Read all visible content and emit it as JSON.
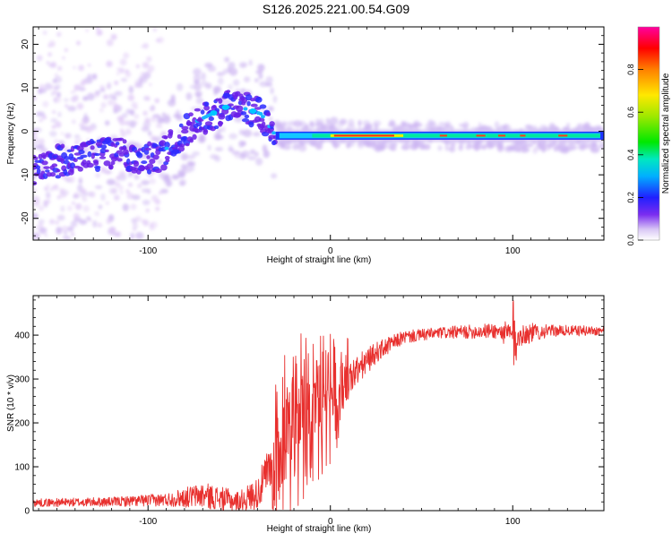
{
  "title": "S126.2025.221.00.54.G09",
  "spectrogram": {
    "chart_data": {
      "type": "heatmap",
      "xlabel": "Height of straight line (km)",
      "ylabel": "Frequency (Hz)",
      "xlim": [
        -163,
        150
      ],
      "ylim": [
        -25,
        24
      ],
      "xticks": [
        -100,
        0,
        100
      ],
      "yticks": [
        -20,
        -10,
        0,
        10,
        20
      ],
      "xtick_labels": [
        "-100",
        "0",
        "100"
      ],
      "ytick_labels": [
        "-20",
        "-10",
        "0",
        "10",
        "20"
      ],
      "ridge": [
        {
          "x": -163,
          "y": -9
        },
        {
          "x": -150,
          "y": -7
        },
        {
          "x": -135,
          "y": -6
        },
        {
          "x": -120,
          "y": -5
        },
        {
          "x": -105,
          "y": -6
        },
        {
          "x": -95,
          "y": -6
        },
        {
          "x": -85,
          "y": -2
        },
        {
          "x": -75,
          "y": 2
        },
        {
          "x": -65,
          "y": 4
        },
        {
          "x": -55,
          "y": 6
        },
        {
          "x": -45,
          "y": 5
        },
        {
          "x": -38,
          "y": 4
        },
        {
          "x": -30,
          "y": -1
        },
        {
          "x": -20,
          "y": -1
        },
        {
          "x": -10,
          "y": -1
        },
        {
          "x": 0,
          "y": -0.5
        },
        {
          "x": 30,
          "y": -1
        },
        {
          "x": 60,
          "y": -1
        },
        {
          "x": 90,
          "y": -1.5
        },
        {
          "x": 120,
          "y": -1.5
        },
        {
          "x": 150,
          "y": -1.5
        }
      ]
    },
    "colorbar": {
      "label": "Normalized spectral amplitude",
      "range": [
        0,
        1
      ],
      "ticks": [
        0.0,
        0.2,
        0.4,
        0.6,
        0.8
      ],
      "tick_labels": [
        "0.0",
        "0.2",
        "0.4",
        "0.6",
        "0.8"
      ]
    }
  },
  "snr": {
    "chart_data": {
      "type": "line",
      "xlabel": "Height of straight line (km)",
      "ylabel": "SNR (10 * v/v)",
      "xlim": [
        -163,
        150
      ],
      "ylim": [
        0,
        490
      ],
      "xticks": [
        -100,
        0,
        100
      ],
      "yticks": [
        0,
        100,
        200,
        300,
        400
      ],
      "xtick_labels": [
        "-100",
        "0",
        "100"
      ],
      "ytick_labels": [
        "0",
        "100",
        "200",
        "300",
        "400"
      ],
      "series": [
        {
          "color": "#e8302e",
          "envelope": [
            {
              "x": -163,
              "y": 18,
              "noise": 15
            },
            {
              "x": -120,
              "y": 20,
              "noise": 18
            },
            {
              "x": -90,
              "y": 25,
              "noise": 25
            },
            {
              "x": -70,
              "y": 35,
              "noise": 50
            },
            {
              "x": -50,
              "y": 20,
              "noise": 40
            },
            {
              "x": -40,
              "y": 40,
              "noise": 60
            },
            {
              "x": -30,
              "y": 120,
              "noise": 120
            },
            {
              "x": -22,
              "y": 180,
              "noise": 180
            },
            {
              "x": -10,
              "y": 200,
              "noise": 140
            },
            {
              "x": 0,
              "y": 250,
              "noise": 110
            },
            {
              "x": 10,
              "y": 300,
              "noise": 70
            },
            {
              "x": 25,
              "y": 360,
              "noise": 40
            },
            {
              "x": 40,
              "y": 395,
              "noise": 25
            },
            {
              "x": 60,
              "y": 405,
              "noise": 22
            },
            {
              "x": 90,
              "y": 410,
              "noise": 30
            },
            {
              "x": 100,
              "y": 400,
              "noise": 55
            },
            {
              "x": 120,
              "y": 410,
              "noise": 22
            },
            {
              "x": 150,
              "y": 410,
              "noise": 18
            }
          ]
        }
      ]
    }
  }
}
